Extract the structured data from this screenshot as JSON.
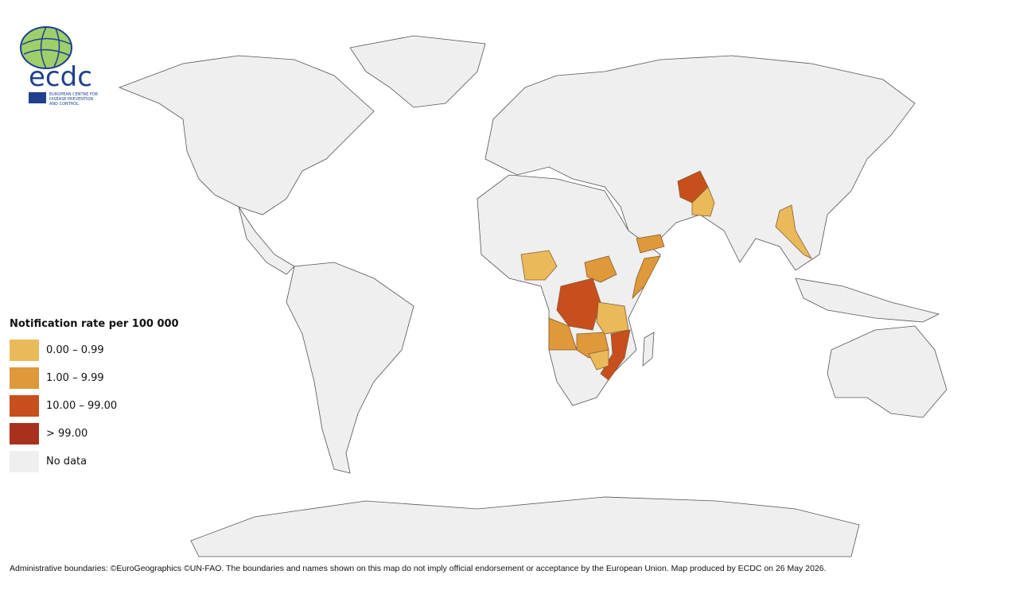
{
  "logo": {
    "acronym": "ecdc",
    "line1": "EUROPEAN CENTRE FOR",
    "line2": "DISEASE PREVENTION",
    "line3": "AND CONTROL"
  },
  "legend": {
    "title": "Notification rate per 100 000",
    "items": [
      {
        "label": "0.00 – 0.99",
        "color": "#eab95a"
      },
      {
        "label": "1.00 – 9.99",
        "color": "#de993a"
      },
      {
        "label": "10.00 – 99.00",
        "color": "#c64f1d"
      },
      {
        "label": "> 99.00",
        "color": "#a9301c"
      },
      {
        "label": "No data",
        "color": "#efefef"
      }
    ]
  },
  "footer": "Administrative boundaries: ©EuroGeographics ©UN-FAO. The boundaries and names shown on this map do not imply official endorsement or acceptance by the European Union. Map produced by ECDC on 26 May 2026."
}
